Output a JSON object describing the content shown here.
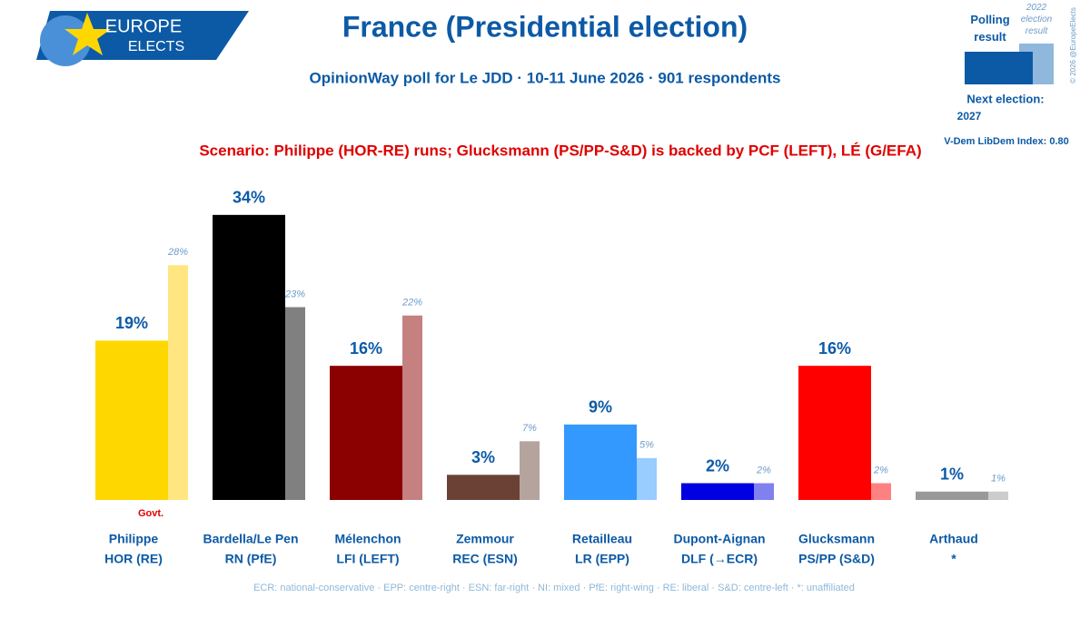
{
  "logo": {
    "line1": "EUROPE",
    "line2": "ELECTS"
  },
  "chart_data": {
    "type": "bar",
    "title": "France (Presidential election)",
    "subtitle": "OpinionWay poll for Le JDD · 10-11 June 2026 · 901 respondents",
    "scenario": "Scenario: Philippe (HOR-RE) runs; Glucksmann (PS/PP-S&D) is backed by PCF (LEFT), LÉ (G/EFA)",
    "categories": [
      "Philippe",
      "Bardella/Le Pen",
      "Mélenchon",
      "Zemmour",
      "Retailleau",
      "Dupont-Aignan",
      "Glucksmann",
      "Arthaud"
    ],
    "parties": [
      "HOR (RE)",
      "RN (PfE)",
      "LFI (LEFT)",
      "REC (ESN)",
      "LR (EPP)",
      "DLF (→ECR)",
      "PS/PP (S&D)",
      "*"
    ],
    "series": [
      {
        "name": "Polling result",
        "color": "#0c5aa6",
        "colors": [
          "#ffd700",
          "#000000",
          "#8b0000",
          "#6b4136",
          "#3399ff",
          "#0000e0",
          "#ff0000",
          "#999999"
        ],
        "values": [
          19,
          34,
          16,
          3,
          9,
          2,
          16,
          1
        ],
        "value_labels": [
          "19%",
          "34%",
          "16%",
          "3%",
          "9%",
          "2%",
          "16%",
          "1%"
        ]
      },
      {
        "name": "2022 election result",
        "color": "#8fb8dc",
        "colors": [
          "#ffe680",
          "#808080",
          "#c58080",
          "#b5a39e",
          "#99ccff",
          "#8080ef",
          "#ff8080",
          "#cccccc"
        ],
        "values": [
          28,
          23,
          22,
          7,
          5,
          2,
          2,
          1
        ],
        "value_labels": [
          "28%",
          "23%",
          "22%",
          "7%",
          "5%",
          "2%",
          "2%",
          "1%"
        ]
      }
    ],
    "annotation": "Govt.",
    "footnote": "ECR: national-conservative · EPP: centre-right · ESN: far-right · NI: mixed · PfE: right-wing · RE: liberal · S&D: centre-left · *: unaffiliated",
    "next_election_label": "Next election:",
    "next_election": "2027",
    "index_label": "V-Dem LibDem Index: 0.80",
    "copyright": "© 2026 @EuropeElects"
  }
}
